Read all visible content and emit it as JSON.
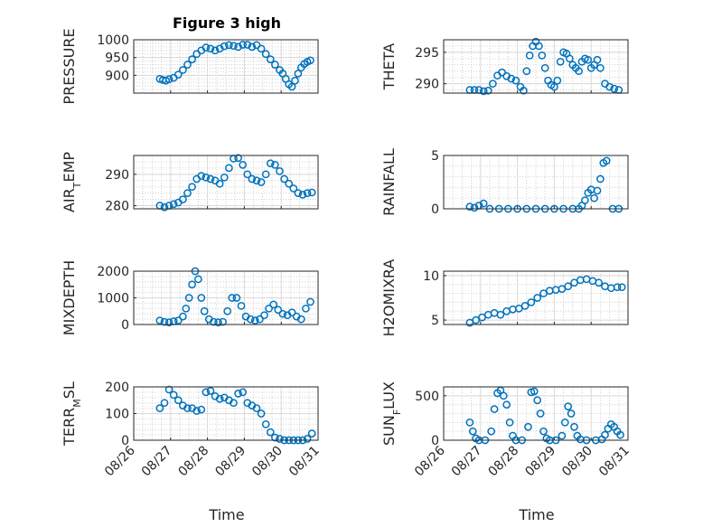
{
  "figure": {
    "title": "Figure 3 high",
    "xlabel": "Time"
  },
  "x_axis": {
    "range": [
      "08/26",
      "08/31"
    ],
    "ticks": [
      "08/26",
      "08/27",
      "08/28",
      "08/29",
      "08/30",
      "08/31"
    ]
  },
  "colors": {
    "marker": "#0072bd",
    "axes": "#262626"
  },
  "chart_data": [
    {
      "type": "scatter",
      "name": "PRESSURE",
      "ylabel": "PRESSURE",
      "ylim": [
        850,
        1000
      ],
      "yticks": [
        900,
        950,
        1000
      ],
      "grid": true,
      "title": "Figure 3 high",
      "x": [
        "08/26 17:00",
        "08/26 19:00",
        "08/26 21:00",
        "08/26 23:00",
        "08/27 02:00",
        "08/27 05:00",
        "08/27 08:00",
        "08/27 11:00",
        "08/27 14:00",
        "08/27 17:00",
        "08/27 20:00",
        "08/27 23:00",
        "08/28 02:00",
        "08/28 05:00",
        "08/28 08:00",
        "08/28 11:00",
        "08/28 14:00",
        "08/28 17:00",
        "08/28 20:00",
        "08/28 23:00",
        "08/29 02:00",
        "08/29 05:00",
        "08/29 08:00",
        "08/29 11:00",
        "08/29 14:00",
        "08/29 17:00",
        "08/29 20:00",
        "08/29 23:00",
        "08/30 01:00",
        "08/30 03:00",
        "08/30 05:00",
        "08/30 07:00",
        "08/30 09:00",
        "08/30 11:00",
        "08/30 13:00",
        "08/30 15:00",
        "08/30 17:00",
        "08/30 19:00"
      ],
      "y": [
        890,
        887,
        885,
        889,
        893,
        902,
        915,
        930,
        945,
        960,
        970,
        978,
        975,
        970,
        975,
        982,
        985,
        983,
        980,
        986,
        986,
        980,
        985,
        975,
        960,
        945,
        930,
        915,
        905,
        890,
        875,
        868,
        885,
        905,
        922,
        932,
        938,
        942
      ]
    },
    {
      "type": "scatter",
      "name": "THETA",
      "ylabel": "THETA",
      "ylim": [
        288.5,
        297
      ],
      "yticks": [
        290,
        295
      ],
      "grid": true,
      "x": [
        "08/26 17:00",
        "08/26 20:00",
        "08/26 23:00",
        "08/27 02:00",
        "08/27 05:00",
        "08/27 08:00",
        "08/27 11:00",
        "08/27 14:00",
        "08/27 17:00",
        "08/27 20:00",
        "08/27 23:00",
        "08/28 02:00",
        "08/28 04:00",
        "08/28 06:00",
        "08/28 08:00",
        "08/28 10:00",
        "08/28 12:00",
        "08/28 14:00",
        "08/28 16:00",
        "08/28 18:00",
        "08/28 20:00",
        "08/28 22:00",
        "08/29 00:00",
        "08/29 02:00",
        "08/29 04:00",
        "08/29 06:00",
        "08/29 08:00",
        "08/29 10:00",
        "08/29 12:00",
        "08/29 14:00",
        "08/29 16:00",
        "08/29 18:00",
        "08/29 20:00",
        "08/29 22:00",
        "08/30 00:00",
        "08/30 02:00",
        "08/30 04:00",
        "08/30 06:00",
        "08/30 09:00",
        "08/30 12:00",
        "08/30 15:00",
        "08/30 18:00"
      ],
      "y": [
        289,
        289,
        289,
        288.8,
        288.9,
        290,
        291.3,
        291.8,
        291.2,
        290.8,
        290.5,
        289.5,
        288.9,
        292,
        294.5,
        296,
        296.7,
        296,
        294.5,
        292.5,
        290.5,
        289.8,
        289.5,
        290.5,
        293.5,
        295,
        294.8,
        294,
        293,
        292.5,
        292,
        293.5,
        294,
        293.8,
        292.5,
        293,
        293.8,
        292.5,
        290,
        289.5,
        289.2,
        289
      ]
    },
    {
      "type": "scatter",
      "name": "AIR_TEMP",
      "ylabel": "AIR_TEMP",
      "ylim": [
        279,
        296
      ],
      "yticks": [
        280,
        290
      ],
      "grid": true,
      "x": [
        "08/26 17:00",
        "08/26 20:00",
        "08/26 23:00",
        "08/27 02:00",
        "08/27 05:00",
        "08/27 08:00",
        "08/27 11:00",
        "08/27 14:00",
        "08/27 17:00",
        "08/27 20:00",
        "08/27 23:00",
        "08/28 02:00",
        "08/28 05:00",
        "08/28 08:00",
        "08/28 11:00",
        "08/28 14:00",
        "08/28 17:00",
        "08/28 20:00",
        "08/28 23:00",
        "08/29 02:00",
        "08/29 05:00",
        "08/29 08:00",
        "08/29 11:00",
        "08/29 14:00",
        "08/29 17:00",
        "08/29 20:00",
        "08/29 23:00",
        "08/30 02:00",
        "08/30 05:00",
        "08/30 08:00",
        "08/30 11:00",
        "08/30 14:00",
        "08/30 17:00",
        "08/30 20:00"
      ],
      "y": [
        280,
        279.5,
        280,
        280.5,
        281,
        282,
        284,
        286,
        288.5,
        289.5,
        289,
        288.5,
        288,
        287,
        289,
        292,
        295,
        295.2,
        293,
        290,
        288.5,
        288,
        287.5,
        290,
        293.5,
        293,
        291,
        288.5,
        287,
        285.5,
        284,
        283.5,
        284,
        284.2
      ]
    },
    {
      "type": "scatter",
      "name": "RAINFALL",
      "ylabel": "RAINFALL",
      "ylim": [
        0,
        5
      ],
      "yticks": [
        0,
        5
      ],
      "grid": true,
      "x": [
        "08/26 17:00",
        "08/26 20:00",
        "08/26 23:00",
        "08/27 02:00",
        "08/27 06:00",
        "08/27 12:00",
        "08/27 18:00",
        "08/28 00:00",
        "08/28 06:00",
        "08/28 12:00",
        "08/28 18:00",
        "08/29 00:00",
        "08/29 06:00",
        "08/29 12:00",
        "08/29 16:00",
        "08/29 18:00",
        "08/29 20:00",
        "08/29 22:00",
        "08/30 00:00",
        "08/30 02:00",
        "08/30 04:00",
        "08/30 06:00",
        "08/30 08:00",
        "08/30 10:00",
        "08/30 14:00",
        "08/30 18:00"
      ],
      "y": [
        0.2,
        0.1,
        0.3,
        0.5,
        0,
        0,
        0,
        0,
        0,
        0,
        0,
        0,
        0,
        0,
        0,
        0.3,
        0.8,
        1.5,
        1.8,
        1.0,
        1.7,
        2.8,
        4.3,
        4.5,
        0,
        0
      ]
    },
    {
      "type": "scatter",
      "name": "MIXDEPTH",
      "ylabel": "MIXDEPTH",
      "ylim": [
        0,
        2000
      ],
      "yticks": [
        0,
        1000,
        2000
      ],
      "grid": true,
      "x": [
        "08/26 17:00",
        "08/26 20:00",
        "08/26 23:00",
        "08/27 02:00",
        "08/27 05:00",
        "08/27 08:00",
        "08/27 10:00",
        "08/27 12:00",
        "08/27 14:00",
        "08/27 16:00",
        "08/27 18:00",
        "08/27 20:00",
        "08/27 22:00",
        "08/28 01:00",
        "08/28 04:00",
        "08/28 07:00",
        "08/28 10:00",
        "08/28 13:00",
        "08/28 16:00",
        "08/28 19:00",
        "08/28 22:00",
        "08/29 01:00",
        "08/29 04:00",
        "08/29 07:00",
        "08/29 10:00",
        "08/29 13:00",
        "08/29 16:00",
        "08/29 19:00",
        "08/29 22:00",
        "08/30 01:00",
        "08/30 04:00",
        "08/30 07:00",
        "08/30 10:00",
        "08/30 13:00",
        "08/30 16:00",
        "08/30 19:00"
      ],
      "y": [
        150,
        100,
        80,
        120,
        150,
        300,
        600,
        1000,
        1500,
        2000,
        1700,
        1000,
        500,
        200,
        100,
        80,
        100,
        500,
        1000,
        1000,
        700,
        300,
        200,
        150,
        200,
        350,
        600,
        750,
        550,
        400,
        350,
        450,
        300,
        200,
        600,
        850
      ]
    },
    {
      "type": "scatter",
      "name": "H2OMIXRA",
      "ylabel": "H2OMIXRA",
      "ylim": [
        4.5,
        10.5
      ],
      "yticks": [
        5,
        10
      ],
      "grid": true,
      "x": [
        "08/26 17:00",
        "08/26 21:00",
        "08/27 01:00",
        "08/27 05:00",
        "08/27 09:00",
        "08/27 13:00",
        "08/27 17:00",
        "08/27 21:00",
        "08/28 01:00",
        "08/28 05:00",
        "08/28 09:00",
        "08/28 13:00",
        "08/28 17:00",
        "08/28 21:00",
        "08/29 01:00",
        "08/29 05:00",
        "08/29 09:00",
        "08/29 13:00",
        "08/29 17:00",
        "08/29 21:00",
        "08/30 01:00",
        "08/30 05:00",
        "08/30 09:00",
        "08/30 13:00",
        "08/30 17:00",
        "08/30 20:00"
      ],
      "y": [
        4.7,
        5.0,
        5.3,
        5.6,
        5.8,
        5.6,
        6.0,
        6.2,
        6.3,
        6.6,
        7.0,
        7.5,
        8.0,
        8.3,
        8.4,
        8.5,
        8.8,
        9.2,
        9.5,
        9.6,
        9.4,
        9.2,
        8.8,
        8.6,
        8.7,
        8.7
      ]
    },
    {
      "type": "scatter",
      "name": "TERR_MSL",
      "ylabel": "TERR_MSL",
      "ylim": [
        0,
        200
      ],
      "yticks": [
        0,
        100,
        200
      ],
      "grid": true,
      "x": [
        "08/26 17:00",
        "08/26 20:00",
        "08/26 23:00",
        "08/27 02:00",
        "08/27 05:00",
        "08/27 08:00",
        "08/27 11:00",
        "08/27 14:00",
        "08/27 17:00",
        "08/27 20:00",
        "08/27 23:00",
        "08/28 02:00",
        "08/28 05:00",
        "08/28 08:00",
        "08/28 11:00",
        "08/28 14:00",
        "08/28 17:00",
        "08/28 20:00",
        "08/28 23:00",
        "08/29 02:00",
        "08/29 05:00",
        "08/29 08:00",
        "08/29 11:00",
        "08/29 14:00",
        "08/29 17:00",
        "08/29 20:00",
        "08/29 23:00",
        "08/30 02:00",
        "08/30 05:00",
        "08/30 08:00",
        "08/30 11:00",
        "08/30 14:00",
        "08/30 17:00",
        "08/30 20:00"
      ],
      "y": [
        120,
        140,
        190,
        170,
        150,
        130,
        120,
        120,
        110,
        115,
        180,
        185,
        165,
        155,
        160,
        150,
        140,
        175,
        180,
        140,
        130,
        120,
        100,
        60,
        30,
        10,
        5,
        0,
        0,
        0,
        0,
        0,
        5,
        25
      ]
    },
    {
      "type": "scatter",
      "name": "SUN_FLUX",
      "ylabel": "SUN_FLUX",
      "ylim": [
        0,
        600
      ],
      "yticks": [
        0,
        500
      ],
      "grid": true,
      "x": [
        "08/26 17:00",
        "08/26 19:00",
        "08/26 21:00",
        "08/26 23:00",
        "08/27 03:00",
        "08/27 07:00",
        "08/27 09:00",
        "08/27 11:00",
        "08/27 13:00",
        "08/27 15:00",
        "08/27 17:00",
        "08/27 19:00",
        "08/27 21:00",
        "08/27 23:00",
        "08/28 03:00",
        "08/28 07:00",
        "08/28 09:00",
        "08/28 11:00",
        "08/28 13:00",
        "08/28 15:00",
        "08/28 17:00",
        "08/28 19:00",
        "08/28 21:00",
        "08/29 01:00",
        "08/29 05:00",
        "08/29 07:00",
        "08/29 09:00",
        "08/29 11:00",
        "08/29 13:00",
        "08/29 15:00",
        "08/29 17:00",
        "08/29 21:00",
        "08/30 03:00",
        "08/30 07:00",
        "08/30 09:00",
        "08/30 11:00",
        "08/30 13:00",
        "08/30 15:00",
        "08/30 17:00",
        "08/30 19:00"
      ],
      "y": [
        200,
        100,
        20,
        0,
        0,
        100,
        350,
        530,
        560,
        500,
        400,
        200,
        50,
        0,
        0,
        150,
        540,
        550,
        450,
        300,
        100,
        20,
        0,
        0,
        50,
        200,
        380,
        300,
        150,
        50,
        10,
        0,
        0,
        10,
        60,
        130,
        180,
        150,
        100,
        60
      ]
    }
  ]
}
